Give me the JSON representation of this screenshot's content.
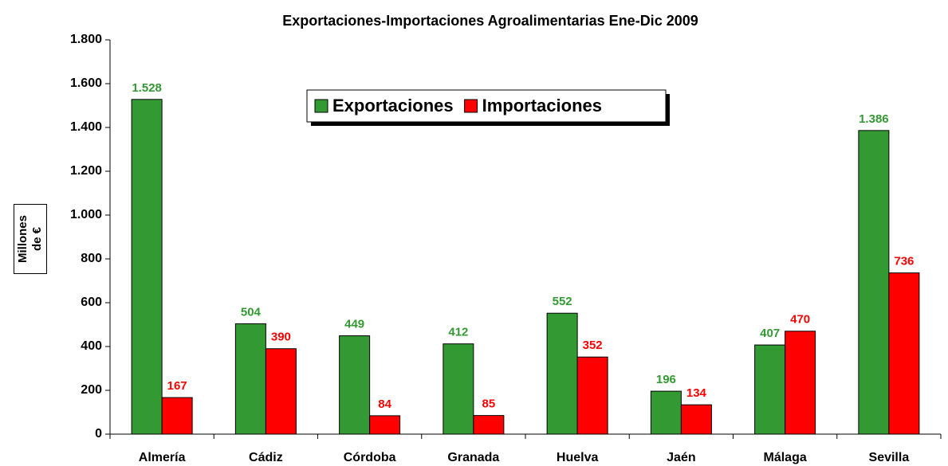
{
  "chart_data": {
    "type": "bar",
    "title": "Exportaciones-Importaciones Agroalimentarias Ene-Dic 2009",
    "y_label": "Millones de €",
    "categories": [
      "Almería",
      "Cádiz",
      "Córdoba",
      "Granada",
      "Huelva",
      "Jaén",
      "Málaga",
      "Sevilla"
    ],
    "series": [
      {
        "name": "Exportaciones",
        "color": "#339933",
        "values": [
          1528,
          504,
          449,
          412,
          552,
          196,
          407,
          1386
        ],
        "value_labels": [
          "1.528",
          "504",
          "449",
          "412",
          "552",
          "196",
          "407",
          "1.386"
        ]
      },
      {
        "name": "Importaciones",
        "color": "#ff0000",
        "values": [
          167,
          390,
          84,
          85,
          352,
          134,
          470,
          736
        ]
      }
    ],
    "ylim": [
      0,
      1800
    ],
    "yticks": [
      0,
      200,
      400,
      600,
      800,
      {
        "value": 1000,
        "label": "1.000"
      },
      {
        "value": 1200,
        "label": "1.200"
      },
      {
        "value": 1400,
        "label": "1.400"
      },
      {
        "value": 1600,
        "label": "1.600"
      },
      {
        "value": 1800,
        "label": "1.800"
      }
    ],
    "grid": false,
    "legend": "top"
  }
}
